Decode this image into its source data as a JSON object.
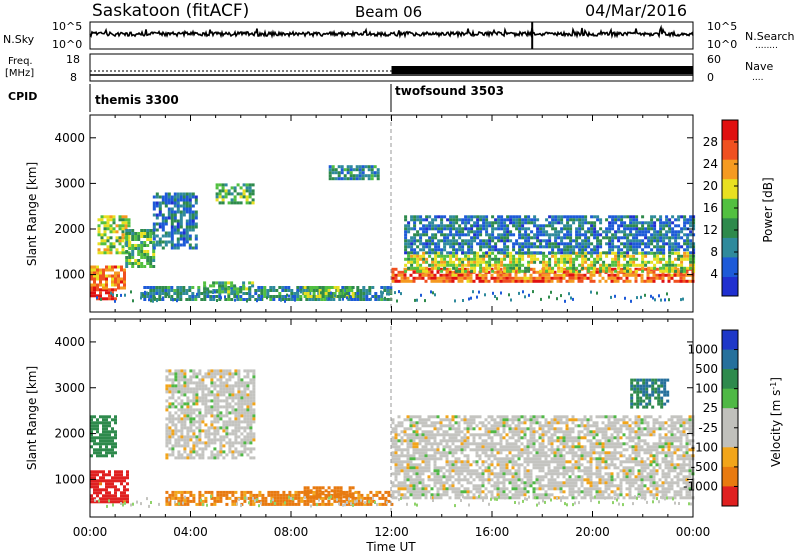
{
  "header": {
    "title": "Saskatoon (fitACF)",
    "beam": "Beam 06",
    "date": "04/Mar/2016"
  },
  "top_panels": {
    "nsky": {
      "label": "N.Sky",
      "ticks": [
        "10^5",
        "10^0"
      ],
      "right_ticks": [
        "10^5",
        "10^0"
      ],
      "right_label": "N.Search",
      "right_legend_line": "........"
    },
    "freq": {
      "label_line1": "Freq.",
      "label_line2": "[MHz]",
      "ticks": [
        "18",
        "8"
      ],
      "right_ticks": [
        "60",
        "0"
      ],
      "right_label": "Nave",
      "right_legend_line": "...."
    },
    "cpid": {
      "label": "CPID",
      "modes": [
        {
          "name": "themis 3300",
          "start": "00:00"
        },
        {
          "name": "twofsound 3503",
          "start": "12:00"
        }
      ]
    }
  },
  "colors": {
    "power_scale": [
      "#2030d0",
      "#1d5ad8",
      "#2f8a9c",
      "#2e8a4c",
      "#52c040",
      "#e8e020",
      "#f59a20",
      "#f05020",
      "#e01010"
    ],
    "velocity_scale": [
      "#1f38c8",
      "#26709c",
      "#2e8a4c",
      "#4fb845",
      "#c0c0bc",
      "#c0c0bc",
      "#f2a51a",
      "#e87a10",
      "#e02020"
    ],
    "gray": "#c4c4c0"
  },
  "chart_data": [
    {
      "type": "heatmap",
      "title": "Power",
      "ylabel": "Slant Range [km]",
      "xlabel": "Time UT",
      "ylim": [
        180,
        4500
      ],
      "yticks": [
        1000,
        2000,
        3000,
        4000
      ],
      "xlim": [
        "00:00",
        "24:00"
      ],
      "xticks": [
        "00:00",
        "04:00",
        "08:00",
        "12:00",
        "16:00",
        "20:00",
        "00:00"
      ],
      "colorbar": {
        "label": "Power [dB]",
        "range": [
          0,
          32
        ],
        "ticks": [
          "28",
          "24",
          "20",
          "16",
          "12",
          "8",
          "4"
        ]
      },
      "regions": [
        {
          "t": [
            0.0,
            1.0
          ],
          "r": [
            500,
            700
          ],
          "level": 30
        },
        {
          "t": [
            0.0,
            1.4
          ],
          "r": [
            700,
            1200
          ],
          "level": 24
        },
        {
          "t": [
            0.3,
            1.6
          ],
          "r": [
            1500,
            2300
          ],
          "level": 18
        },
        {
          "t": [
            1.4,
            2.5
          ],
          "r": [
            1200,
            2000
          ],
          "level": 14
        },
        {
          "t": [
            2.5,
            4.2
          ],
          "r": [
            1600,
            2800
          ],
          "level": 8
        },
        {
          "t": [
            5.0,
            6.5
          ],
          "r": [
            2600,
            3000
          ],
          "level": 14
        },
        {
          "t": [
            2.0,
            12.0
          ],
          "r": [
            450,
            750
          ],
          "level": 10
        },
        {
          "t": [
            4.5,
            6.5
          ],
          "r": [
            650,
            850
          ],
          "level": 14
        },
        {
          "t": [
            8.5,
            10.5
          ],
          "r": [
            550,
            750
          ],
          "level": 16
        },
        {
          "t": [
            9.5,
            11.5
          ],
          "r": [
            3100,
            3400
          ],
          "level": 10
        },
        {
          "t": [
            12.0,
            24.0
          ],
          "r": [
            850,
            1150
          ],
          "level": 26
        },
        {
          "t": [
            12.5,
            24.0
          ],
          "r": [
            1100,
            1500
          ],
          "level": 18
        },
        {
          "t": [
            12.5,
            24.0
          ],
          "r": [
            1500,
            2300
          ],
          "level": 8
        }
      ]
    },
    {
      "type": "heatmap",
      "title": "Velocity",
      "ylabel": "Slant Range [km]",
      "xlabel": "Time UT",
      "ylim": [
        180,
        4500
      ],
      "yticks": [
        1000,
        2000,
        3000,
        4000
      ],
      "xlim": [
        "00:00",
        "24:00"
      ],
      "xticks": [
        "00:00",
        "04:00",
        "08:00",
        "12:00",
        "16:00",
        "20:00",
        "00:00"
      ],
      "colorbar": {
        "label": "Velocity [m s^-1]",
        "ticks": [
          "1000",
          "500",
          "100",
          "25",
          "-25",
          "-100",
          "-500",
          "-1000"
        ]
      },
      "regions": [
        {
          "t": [
            0.0,
            1.5
          ],
          "r": [
            500,
            1200
          ],
          "value": -700
        },
        {
          "t": [
            0.0,
            1.0
          ],
          "r": [
            1500,
            2400
          ],
          "value": 150
        },
        {
          "t": [
            3.0,
            12.0
          ],
          "r": [
            450,
            750
          ],
          "value": -120
        },
        {
          "t": [
            8.5,
            10.5
          ],
          "r": [
            600,
            850
          ],
          "value": -150
        },
        {
          "t": [
            3.0,
            6.5
          ],
          "r": [
            1500,
            3400
          ],
          "value": 0
        },
        {
          "t": [
            12.0,
            24.0
          ],
          "r": [
            600,
            2400
          ],
          "value": 0
        },
        {
          "t": [
            21.5,
            23.0
          ],
          "r": [
            2600,
            3200
          ],
          "value": 300
        }
      ]
    }
  ]
}
